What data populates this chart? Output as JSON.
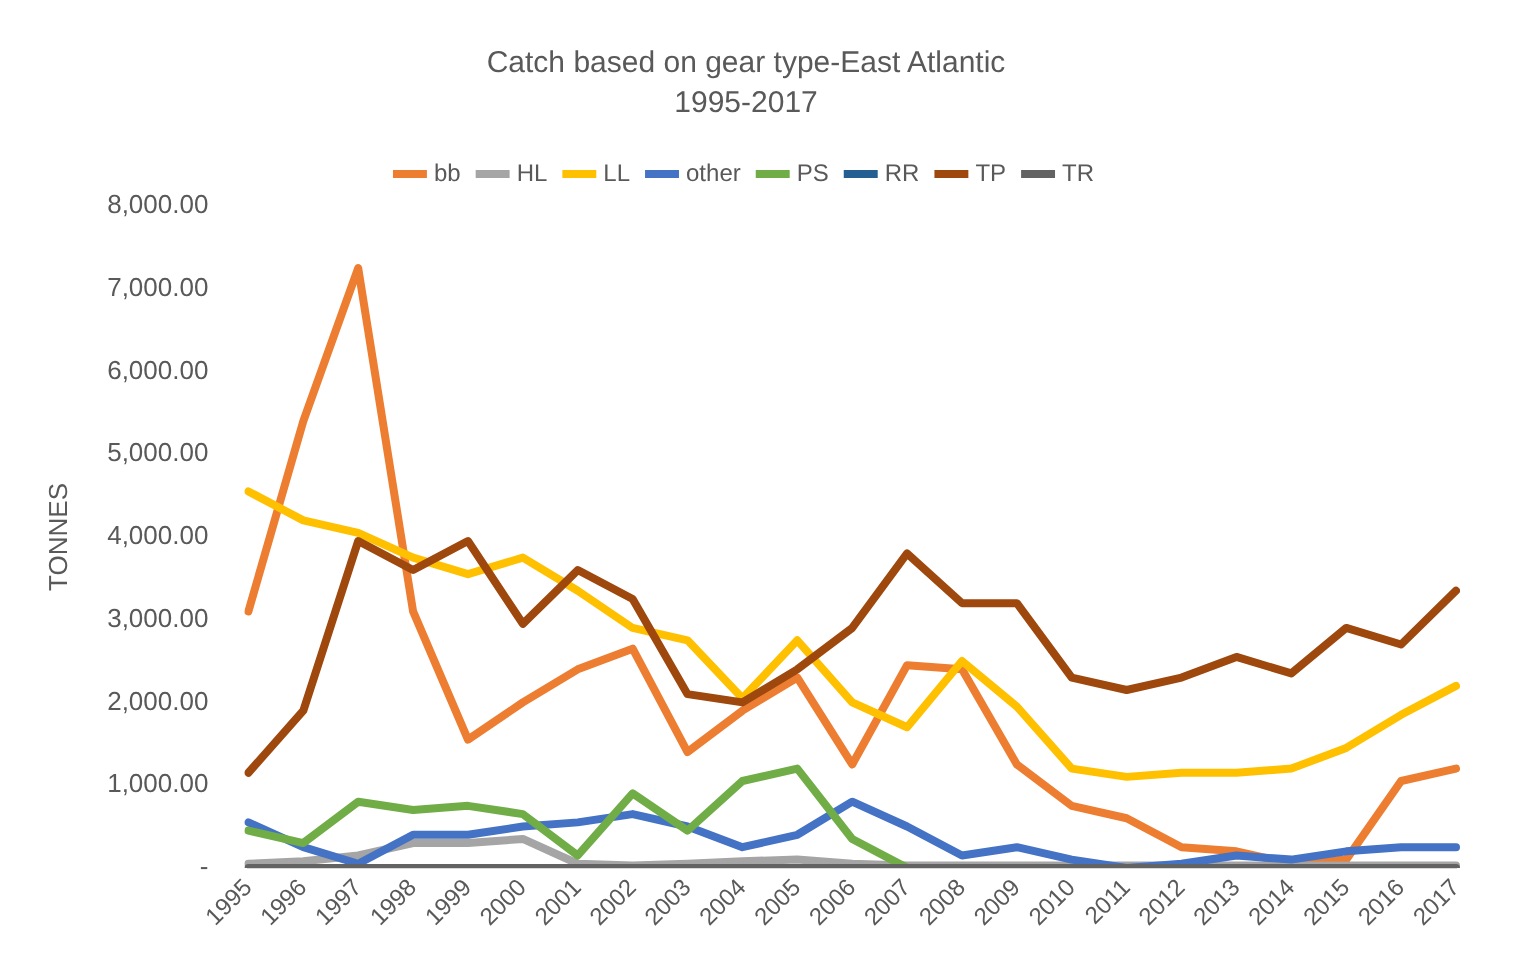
{
  "chart_data": {
    "type": "line",
    "title": "Catch based on gear type-East Atlantic",
    "subtitle": "1995-2017",
    "ylabel": "TONNES",
    "categories": [
      "1995",
      "1996",
      "1997",
      "1998",
      "1999",
      "2000",
      "2001",
      "2002",
      "2003",
      "2004",
      "2005",
      "2006",
      "2007",
      "2008",
      "2009",
      "2010",
      "2011",
      "2012",
      "2013",
      "2014",
      "2015",
      "2016",
      "2017"
    ],
    "series": [
      {
        "name": "bb",
        "color": "#ed7d31",
        "values": [
          3100,
          5400,
          7250,
          3100,
          1550,
          2000,
          2400,
          2650,
          1400,
          1900,
          2300,
          1250,
          2450,
          2400,
          1250,
          750,
          600,
          250,
          200,
          50,
          100,
          1050,
          1200
        ]
      },
      {
        "name": "HL",
        "color": "#a5a5a5",
        "values": [
          50,
          80,
          150,
          300,
          300,
          350,
          50,
          30,
          50,
          80,
          100,
          50,
          30,
          30,
          30,
          30,
          30,
          30,
          30,
          30,
          30,
          30,
          30
        ]
      },
      {
        "name": "LL",
        "color": "#ffc000",
        "values": [
          4550,
          4200,
          4050,
          3750,
          3550,
          3750,
          3350,
          2900,
          2750,
          2050,
          2750,
          2000,
          1700,
          2500,
          1950,
          1200,
          1100,
          1150,
          1150,
          1200,
          1450,
          1850,
          2200
        ]
      },
      {
        "name": "other",
        "color": "#4472c4",
        "values": [
          550,
          250,
          50,
          400,
          400,
          500,
          550,
          650,
          500,
          250,
          400,
          800,
          500,
          150,
          250,
          100,
          0,
          50,
          150,
          100,
          200,
          250,
          250
        ]
      },
      {
        "name": "PS",
        "color": "#70ad47",
        "values": [
          450,
          300,
          800,
          700,
          750,
          650,
          150,
          900,
          450,
          1050,
          1200,
          350,
          0,
          null,
          null,
          null,
          null,
          null,
          null,
          null,
          null,
          null,
          null
        ]
      },
      {
        "name": "RR",
        "color": "#255e91",
        "values": [
          null,
          null,
          null,
          null,
          null,
          null,
          null,
          null,
          null,
          null,
          null,
          null,
          null,
          null,
          null,
          null,
          null,
          null,
          null,
          null,
          null,
          null,
          null
        ]
      },
      {
        "name": "TP",
        "color": "#9e480e",
        "values": [
          1150,
          1900,
          3950,
          3600,
          3950,
          2950,
          3600,
          3250,
          2100,
          2000,
          2400,
          2900,
          3800,
          3200,
          3200,
          2300,
          2150,
          2300,
          2550,
          2350,
          2900,
          2700,
          3350
        ]
      },
      {
        "name": "TR",
        "color": "#636363",
        "values": [
          0,
          0,
          0,
          0,
          0,
          0,
          0,
          0,
          0,
          0,
          0,
          0,
          0,
          0,
          0,
          0,
          0,
          0,
          0,
          0,
          0,
          0,
          0
        ]
      }
    ],
    "ylim": [
      0,
      8000
    ],
    "yticks": [
      {
        "value": 0,
        "label": "-"
      },
      {
        "value": 1000,
        "label": "1,000.00"
      },
      {
        "value": 2000,
        "label": "2,000.00"
      },
      {
        "value": 3000,
        "label": "3,000.00"
      },
      {
        "value": 4000,
        "label": "4,000.00"
      },
      {
        "value": 5000,
        "label": "5,000.00"
      },
      {
        "value": 6000,
        "label": "6,000.00"
      },
      {
        "value": 7000,
        "label": "7,000.00"
      },
      {
        "value": 8000,
        "label": "8,000.00"
      }
    ],
    "grid": false,
    "legend": "top",
    "marker": "none",
    "line_style": "solid"
  }
}
